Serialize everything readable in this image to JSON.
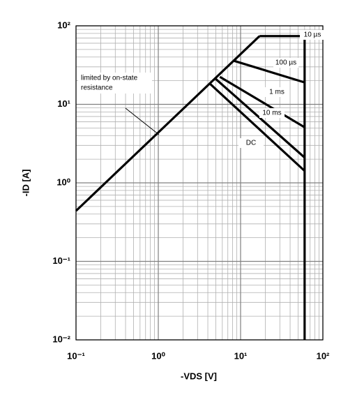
{
  "chart_data": {
    "type": "line",
    "xscale": "log",
    "yscale": "log",
    "grid": true,
    "minor_grid": true,
    "xlabel": "-VDS [V]",
    "ylabel": "-ID [A]",
    "xlim": [
      0.1,
      100
    ],
    "ylim": [
      0.01,
      100
    ],
    "xticks": [
      {
        "value": 0.1,
        "label": "10⁻¹"
      },
      {
        "value": 1,
        "label": "10⁰"
      },
      {
        "value": 10,
        "label": "10¹"
      },
      {
        "value": 100,
        "label": "10²"
      }
    ],
    "yticks": [
      {
        "value": 0.01,
        "label": "10⁻²"
      },
      {
        "value": 0.1,
        "label": "10⁻¹"
      },
      {
        "value": 1,
        "label": "10⁰"
      },
      {
        "value": 10,
        "label": "10¹"
      },
      {
        "value": 100,
        "label": "10²"
      }
    ],
    "annotation": [
      "limited by on-state",
      "resistance"
    ],
    "series": [
      {
        "color": "#000000",
        "x": [
          0.1,
          17
        ],
        "values": [
          0.44,
          74
        ]
      },
      {
        "name": "10 µs",
        "color": "#000000",
        "x": [
          17,
          60,
          60
        ],
        "values": [
          74,
          74,
          0.01
        ]
      },
      {
        "name": "100 µs",
        "color": "#000000",
        "x": [
          8.2,
          60
        ],
        "values": [
          36,
          19
        ]
      },
      {
        "name": "1 ms",
        "color": "#000000",
        "x": [
          5.6,
          60
        ],
        "values": [
          22.4,
          5.1
        ]
      },
      {
        "name": "10 ms",
        "color": "#000000",
        "x": [
          5.0,
          60
        ],
        "values": [
          21,
          2.1
        ]
      },
      {
        "name": "DC",
        "color": "#000000",
        "x": [
          4.24,
          60
        ],
        "values": [
          18.3,
          1.42
        ]
      }
    ]
  }
}
